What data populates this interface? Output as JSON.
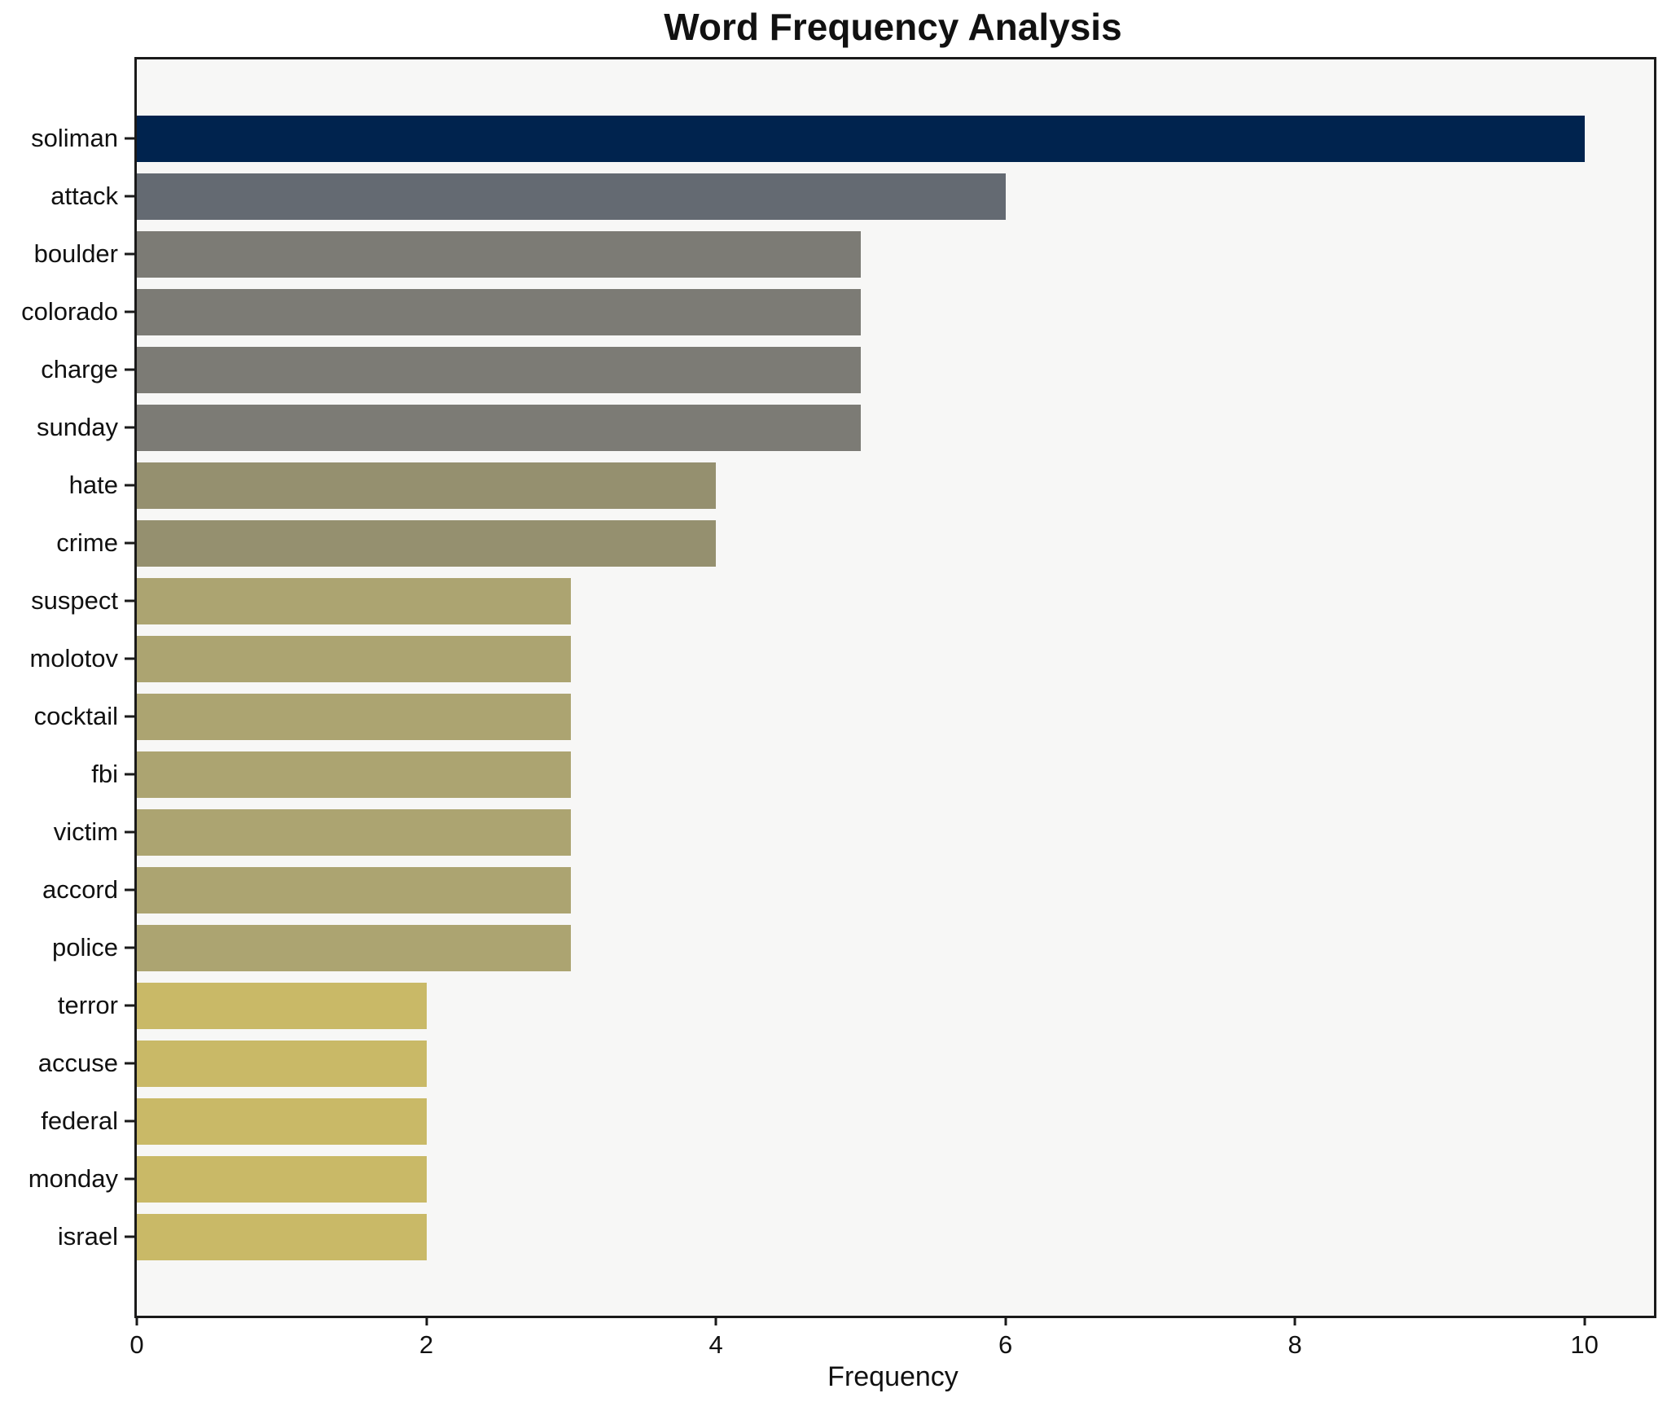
{
  "chart_data": {
    "type": "bar",
    "orientation": "horizontal",
    "title": "Word Frequency Analysis",
    "xlabel": "Frequency",
    "ylabel": "",
    "categories": [
      "soliman",
      "attack",
      "boulder",
      "colorado",
      "charge",
      "sunday",
      "hate",
      "crime",
      "suspect",
      "molotov",
      "cocktail",
      "fbi",
      "victim",
      "accord",
      "police",
      "terror",
      "accuse",
      "federal",
      "monday",
      "israel"
    ],
    "values": [
      10,
      6,
      5,
      5,
      5,
      5,
      4,
      4,
      3,
      3,
      3,
      3,
      3,
      3,
      3,
      2,
      2,
      2,
      2,
      2
    ],
    "bar_colors": [
      "#00234e",
      "#646a72",
      "#7c7b75",
      "#7c7b75",
      "#7c7b75",
      "#7c7b75",
      "#95906f",
      "#95906f",
      "#aca471",
      "#aca471",
      "#aca471",
      "#aca471",
      "#aca471",
      "#aca471",
      "#aca471",
      "#c9b967",
      "#c9b967",
      "#c9b967",
      "#c9b967",
      "#c9b967"
    ],
    "xticks": [
      "0",
      "2",
      "4",
      "6",
      "8",
      "10"
    ],
    "xtick_values": [
      0,
      2,
      4,
      6,
      8,
      10
    ],
    "xlim": [
      0,
      10.48
    ],
    "grid": false,
    "legend": "none",
    "colors": {
      "figure_background": "#ffffff",
      "plot_background": "#f7f7f6",
      "spine": "#1a1a1a",
      "text": "#111111"
    }
  }
}
